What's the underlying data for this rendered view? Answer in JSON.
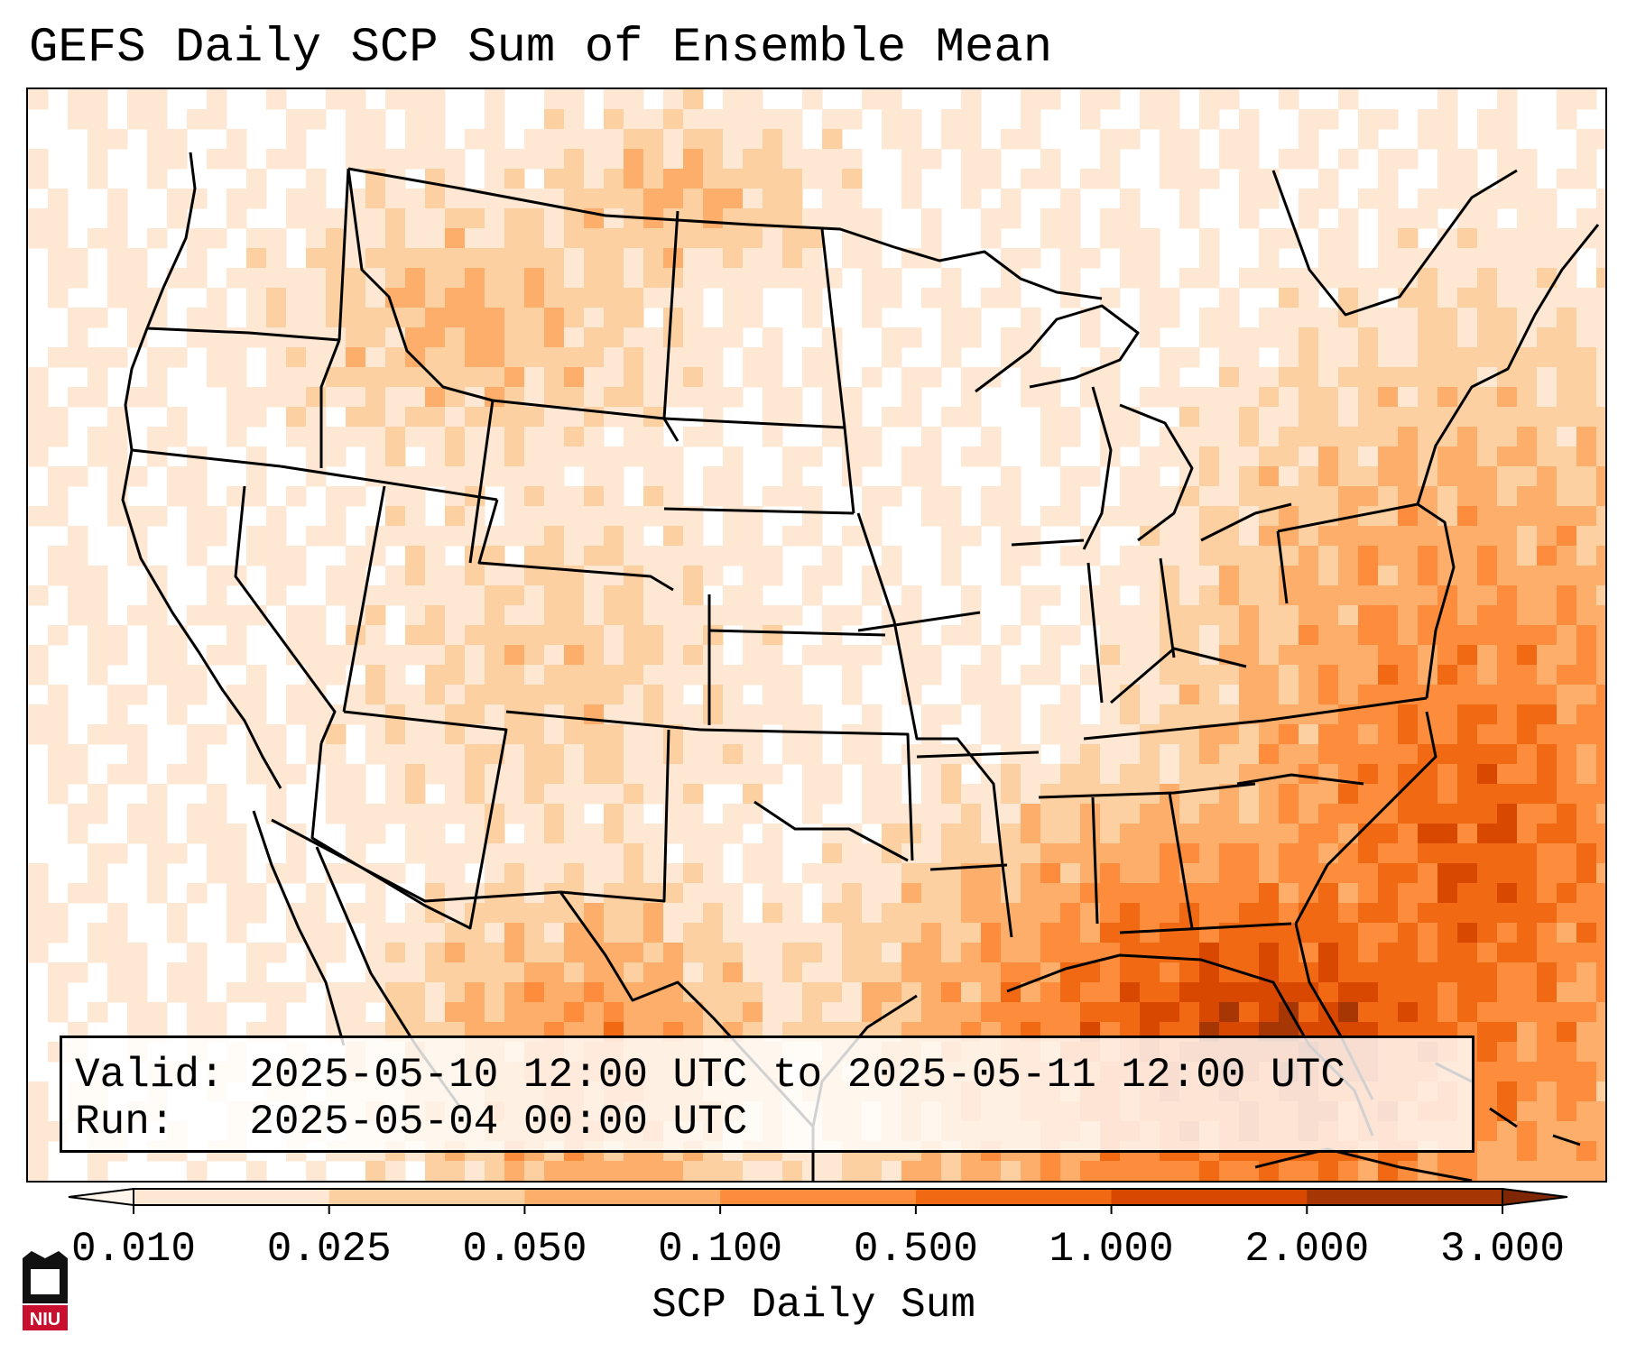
{
  "title": "GEFS Daily SCP Sum of Ensemble Mean",
  "info": {
    "valid_label": "Valid:",
    "valid_value": "2025-05-10 12:00 UTC to 2025-05-11 12:00 UTC",
    "run_label": "Run:",
    "run_value": "2025-05-04 00:00 UTC"
  },
  "colorbar": {
    "label": "SCP Daily Sum",
    "ticks": [
      "0.010",
      "0.025",
      "0.050",
      "0.100",
      "0.500",
      "1.000",
      "2.000",
      "3.000"
    ],
    "colors": [
      "#fee8d3",
      "#fdd0a2",
      "#fdae6b",
      "#fd8d3c",
      "#f16913",
      "#d94801",
      "#a63603"
    ],
    "under_color": "#fff5eb",
    "over_color": "#7f2704",
    "extend": "both"
  },
  "logo": {
    "text": "NIU",
    "colors": {
      "primary": "#c8102e",
      "dark": "#111111"
    }
  },
  "map": {
    "region": "Contiguous United States, northern Mexico, Gulf of Mexico",
    "projection": "Lambert Conformal",
    "borders": [
      "coastlines",
      "country borders",
      "state borders"
    ]
  }
}
